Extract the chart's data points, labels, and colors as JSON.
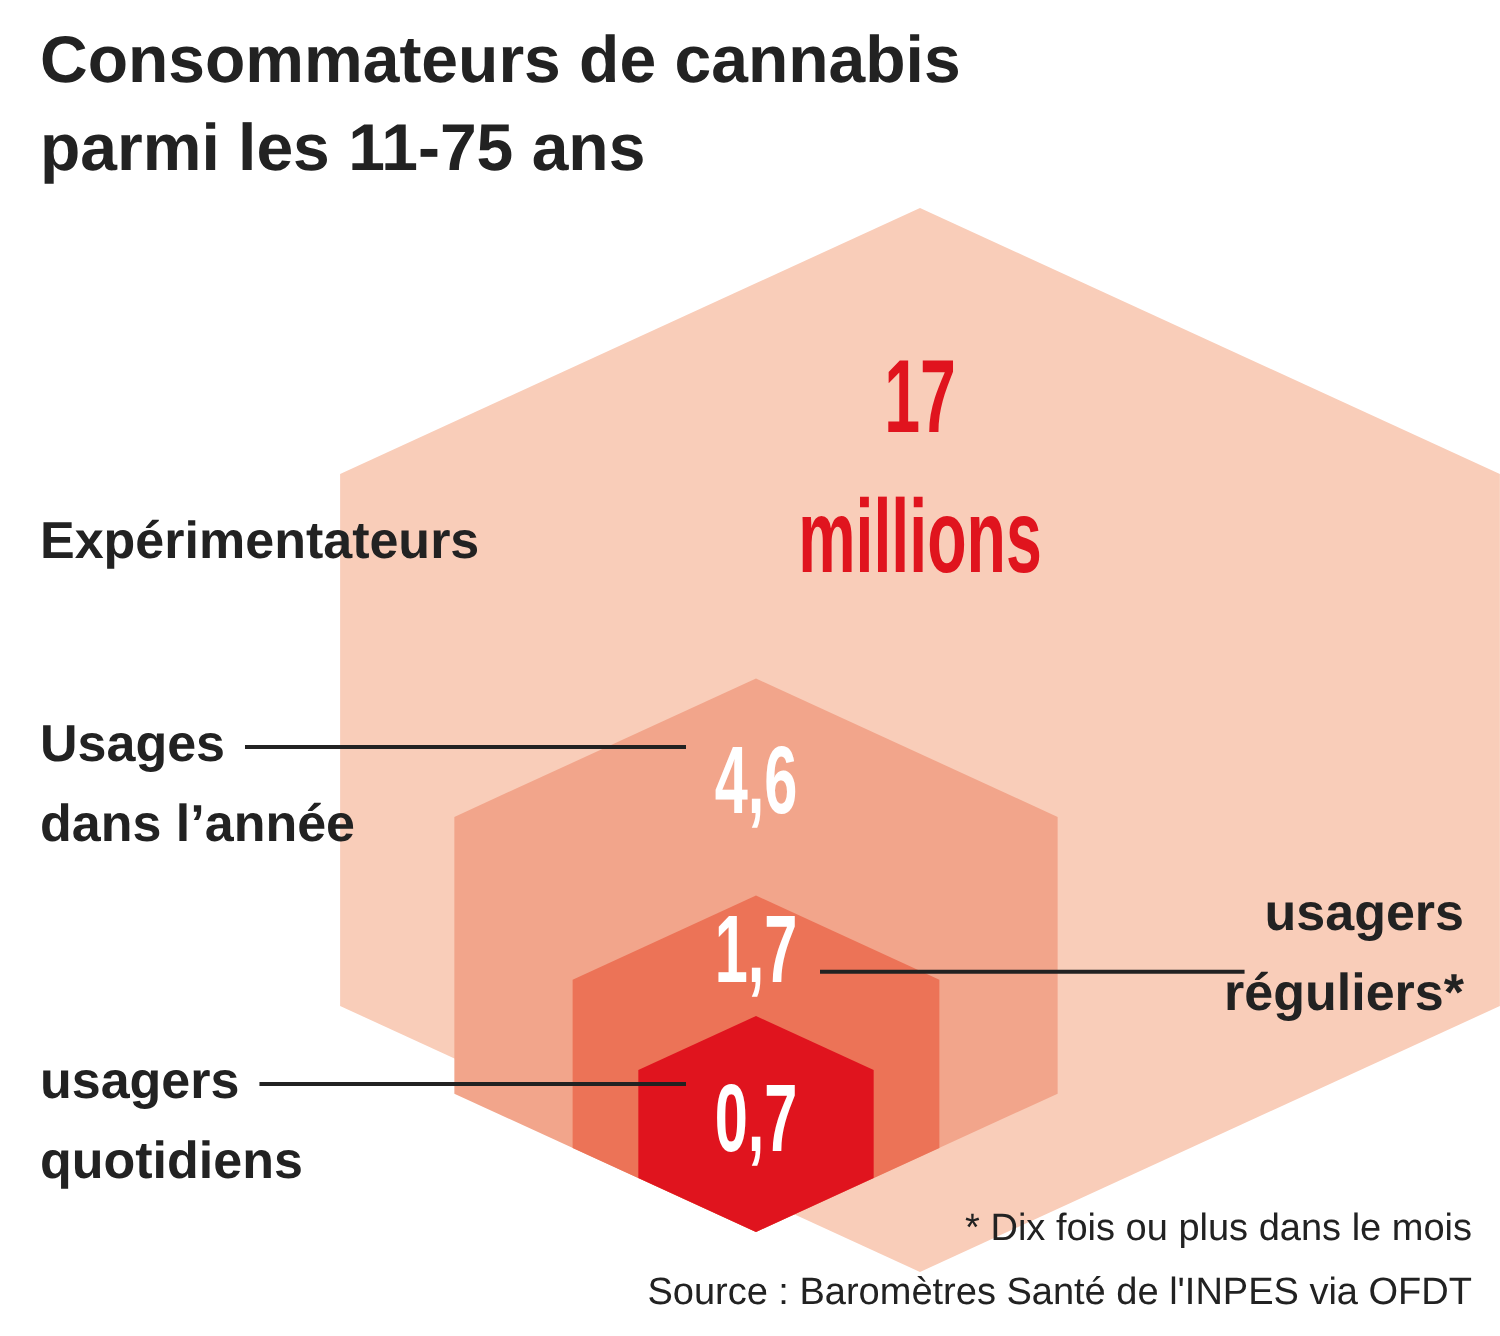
{
  "chart_data": {
    "type": "other",
    "title": "Consommateurs de cannabis parmi les 11-75 ans",
    "categories": [
      "Expérimentateurs",
      "Usages dans l’année",
      "usagers réguliers*",
      "usagers quotidiens"
    ],
    "values": [
      17,
      4.6,
      1.7,
      0.7
    ],
    "value_labels": [
      "17 millions",
      "4,6",
      "1,7",
      "0,7"
    ],
    "colors": [
      "#f9cdb9",
      "#f2a58b",
      "#ec7357",
      "#e0141e"
    ],
    "annotations": [
      "* Dix fois ou plus dans le mois",
      "Source : Baromètres Santé de l'INPES via OFDT"
    ]
  }
}
